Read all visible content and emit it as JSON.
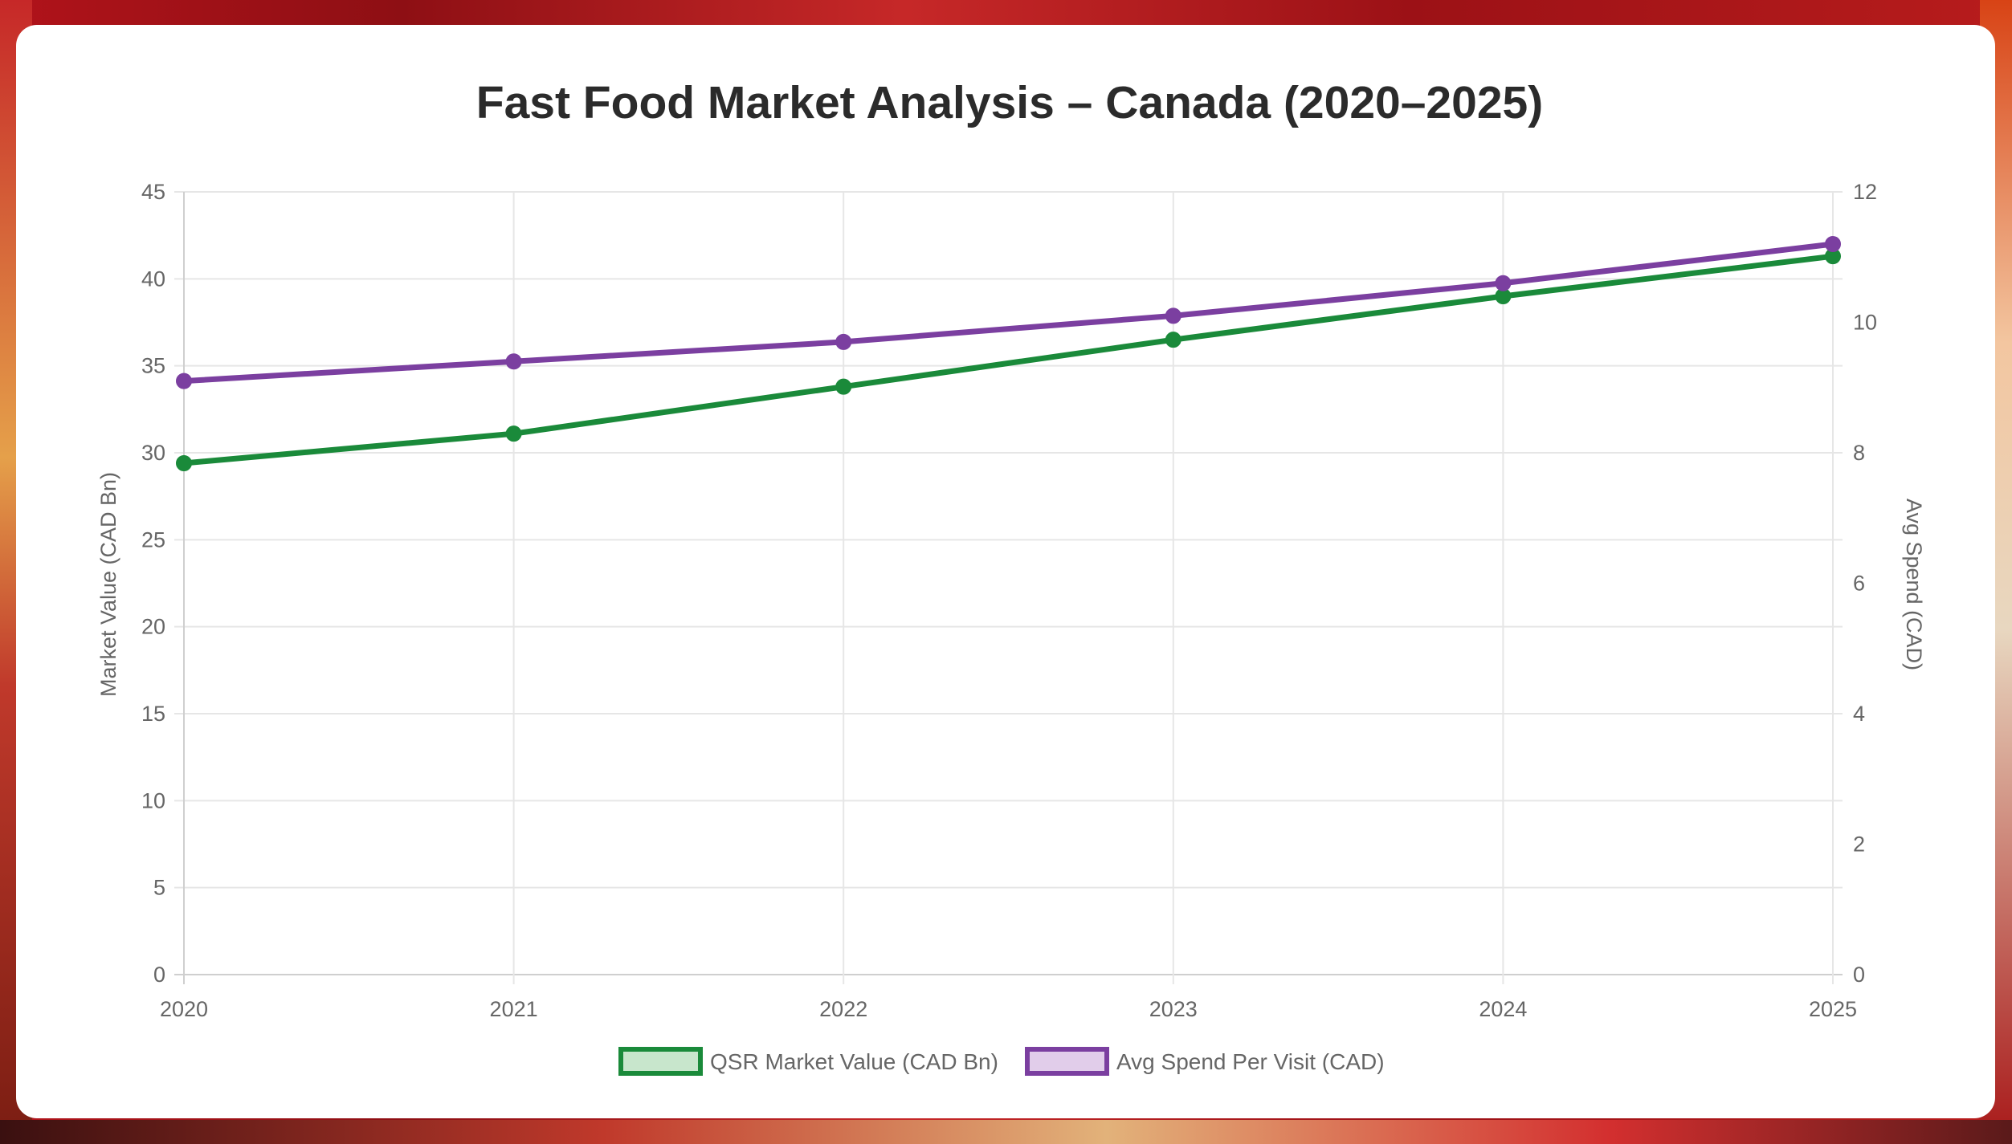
{
  "chart_data": {
    "type": "line",
    "title": "Fast Food Market Analysis – Canada (2020–2025)",
    "categories": [
      "2020",
      "2021",
      "2022",
      "2023",
      "2024",
      "2025"
    ],
    "y_left": {
      "label": "Market Value (CAD Bn)",
      "range": [
        0,
        45
      ],
      "ticks": [
        0,
        5,
        10,
        15,
        20,
        25,
        30,
        35,
        40,
        45
      ]
    },
    "y_right": {
      "label": "Avg Spend (CAD)",
      "range": [
        0,
        12
      ],
      "ticks": [
        0,
        2,
        4,
        6,
        8,
        10,
        12
      ]
    },
    "grid": true,
    "legend_position": "bottom",
    "series": [
      {
        "name": "QSR Market Value (CAD Bn)",
        "axis": "left",
        "color": "#1a8a3a",
        "fill": "#c8e6cc",
        "values": [
          29.4,
          31.1,
          33.8,
          36.5,
          39.0,
          41.3
        ]
      },
      {
        "name": "Avg Spend Per Visit (CAD)",
        "axis": "right",
        "color": "#7b3fa0",
        "fill": "#e1cdea",
        "values": [
          9.1,
          9.4,
          9.7,
          10.1,
          10.6,
          11.2
        ]
      }
    ]
  }
}
